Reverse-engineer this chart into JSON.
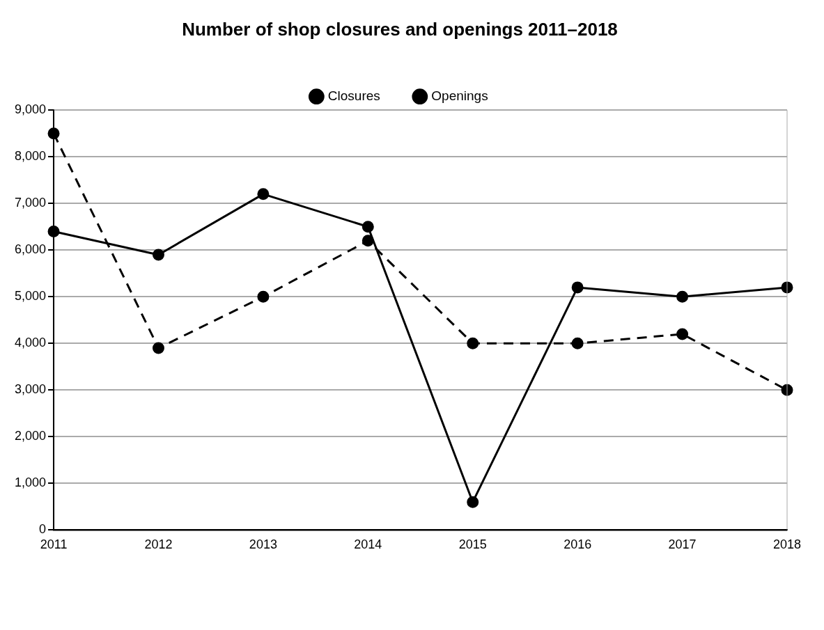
{
  "chart_data": {
    "type": "line",
    "title": "Number of shop closures and openings 2011–2018",
    "categories": [
      "2011",
      "2012",
      "2013",
      "2014",
      "2015",
      "2016",
      "2017",
      "2018"
    ],
    "series": [
      {
        "name": "Closures",
        "color": "#000000",
        "line_style": "solid",
        "values": [
          6400,
          5900,
          7200,
          6500,
          600,
          5200,
          5000,
          5200
        ]
      },
      {
        "name": "Openings",
        "color": "#000000",
        "line_style": "dashed",
        "values": [
          8500,
          3900,
          5000,
          6200,
          4000,
          4000,
          4200,
          3000
        ]
      }
    ],
    "ylim": [
      0,
      9000
    ],
    "yticks": [
      {
        "value": 0,
        "label": "0"
      },
      {
        "value": 1000,
        "label": "1,000"
      },
      {
        "value": 2000,
        "label": "2,000"
      },
      {
        "value": 3000,
        "label": "3,000"
      },
      {
        "value": 4000,
        "label": "4,000"
      },
      {
        "value": 5000,
        "label": "5,000"
      },
      {
        "value": 6000,
        "label": "6,000"
      },
      {
        "value": 7000,
        "label": "7,000"
      },
      {
        "value": 8000,
        "label": "8,000"
      },
      {
        "value": 9000,
        "label": "9,000"
      }
    ],
    "grid": "y",
    "legend": "top",
    "marker": "circle"
  }
}
